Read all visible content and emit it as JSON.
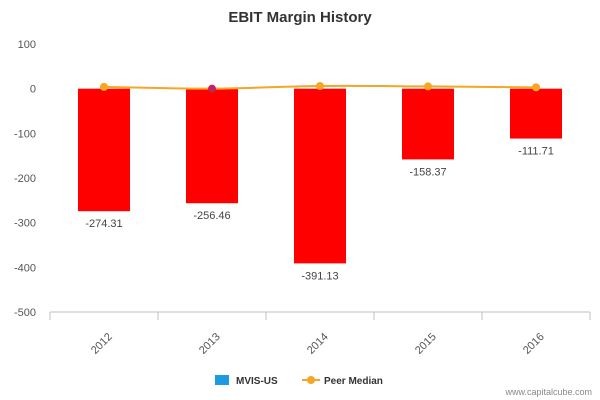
{
  "chart_data": {
    "type": "bar",
    "title": "EBIT Margin History",
    "categories": [
      "2012",
      "2013",
      "2014",
      "2015",
      "2016"
    ],
    "series": [
      {
        "name": "MVIS-US",
        "type": "bar",
        "values": [
          -274.31,
          -256.46,
          -391.13,
          -158.37,
          -111.71
        ],
        "data_labels": [
          "-274.31",
          "-256.46",
          "-391.13",
          "-158.37",
          "-111.71"
        ]
      },
      {
        "name": "Peer Median",
        "type": "line",
        "values": [
          4,
          0,
          6,
          5,
          3
        ]
      }
    ],
    "xlabel": "",
    "ylabel": "",
    "ylim": [
      -500,
      100
    ],
    "yticks": [
      "100",
      "0",
      "-100",
      "-200",
      "-300",
      "-400",
      "-500"
    ],
    "legend_position": "bottom",
    "grid": false,
    "colors": {
      "bars": "#ff0000",
      "legend_bar": "#1e9be0",
      "line": "#f5a623",
      "highlight_marker": "#c0255c"
    }
  },
  "credit": "www.capitalcube.com"
}
